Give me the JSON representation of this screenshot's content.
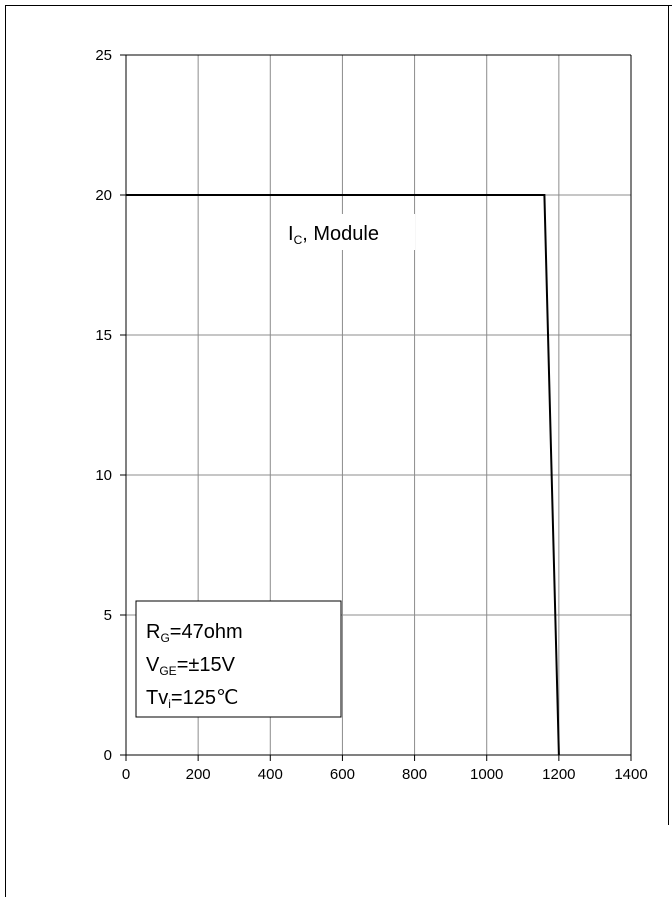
{
  "chart_data": {
    "type": "line",
    "title": "",
    "xlabel": "",
    "ylabel": "",
    "xlim": [
      0,
      1400
    ],
    "ylim": [
      0,
      25
    ],
    "xticks": [
      0,
      200,
      400,
      600,
      800,
      1000,
      1200,
      1400
    ],
    "yticks": [
      0,
      5,
      10,
      15,
      20,
      25
    ],
    "grid": true,
    "series": [
      {
        "name": "IC, Module",
        "color": "#000000",
        "x": [
          0,
          1160,
          1200
        ],
        "y": [
          20,
          20,
          0
        ]
      }
    ],
    "series_label": {
      "main": "I",
      "sub": "C",
      "rest": ", Module"
    },
    "annotation_box": {
      "lines": [
        {
          "main": "R",
          "sub": "G",
          "rest": "=47ohm"
        },
        {
          "main": "V",
          "sub": "GE",
          "rest": "=±15V"
        },
        {
          "main": "Tv",
          "sub": "i",
          "rest": "=125℃"
        }
      ]
    }
  }
}
